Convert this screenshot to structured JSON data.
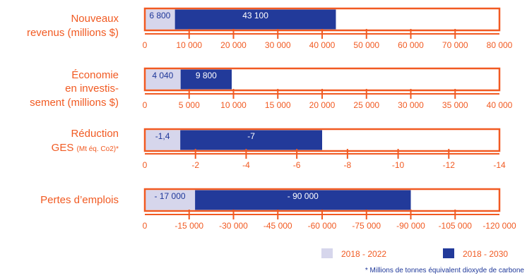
{
  "colors": {
    "accent": "#f15a22",
    "period_short": "#d6d6ec",
    "period_long": "#223a9a",
    "text_dark": "#1e3799"
  },
  "chart_data": [
    {
      "type": "bar",
      "label_lines": [
        "Nouveaux",
        "revenus (millions $)"
      ],
      "label_suffix": "",
      "xlim": [
        0,
        80000
      ],
      "ticks": [
        0,
        10000,
        20000,
        30000,
        40000,
        50000,
        60000,
        70000,
        80000
      ],
      "tick_labels": [
        "0",
        "10 000",
        "20 000",
        "30 000",
        "40 000",
        "50 000",
        "60 000",
        "70 000",
        "80 000"
      ],
      "series": [
        {
          "name": "2018 - 2022",
          "value": 6800,
          "label": "6 800"
        },
        {
          "name": "2018 - 2030",
          "value": 43100,
          "label": "43 100"
        }
      ]
    },
    {
      "type": "bar",
      "label_lines": [
        "Économie",
        "en investis-",
        "sement (millions $)"
      ],
      "label_suffix": "",
      "xlim": [
        0,
        40000
      ],
      "ticks": [
        0,
        5000,
        10000,
        15000,
        20000,
        25000,
        30000,
        35000,
        40000
      ],
      "tick_labels": [
        "0",
        "5 000",
        "10 000",
        "15 000",
        "20 000",
        "25 000",
        "30 000",
        "35 000",
        "40 000"
      ],
      "series": [
        {
          "name": "2018 - 2022",
          "value": 4040,
          "label": "4 040"
        },
        {
          "name": "2018 - 2030",
          "value": 9800,
          "label": "9 800"
        }
      ]
    },
    {
      "type": "bar",
      "label_lines": [
        "Réduction",
        "GES"
      ],
      "label_suffix": "(Mt éq. Co2)*",
      "xlim": [
        0,
        -14
      ],
      "ticks": [
        0,
        -2,
        -4,
        -6,
        -8,
        -10,
        -12,
        -14
      ],
      "tick_labels": [
        "0",
        "-2",
        "-4",
        "-6",
        "-8",
        "-10",
        "-12",
        "-14"
      ],
      "series": [
        {
          "name": "2018 - 2022",
          "value": -1.4,
          "label": "-1,4"
        },
        {
          "name": "2018 - 2030",
          "value": -7,
          "label": "-7"
        }
      ]
    },
    {
      "type": "bar",
      "label_lines": [
        "Pertes d’emplois"
      ],
      "label_suffix": "",
      "xlim": [
        0,
        -120000
      ],
      "ticks": [
        0,
        -15000,
        -30000,
        -45000,
        -60000,
        -75000,
        -90000,
        -105000,
        -120000
      ],
      "tick_labels": [
        "0",
        "-15 000",
        "-30 000",
        "-45 000",
        "-60 000",
        "-75 000",
        "-90 000",
        "-105 000",
        "-120 000"
      ],
      "series": [
        {
          "name": "2018 - 2022",
          "value": -17000,
          "label": "- 17 000"
        },
        {
          "name": "2018 - 2030",
          "value": -90000,
          "label": "- 90 000"
        }
      ]
    }
  ],
  "legend": {
    "items": [
      {
        "label": "2018 - 2022"
      },
      {
        "label": "2018 - 2030"
      }
    ],
    "footnote": "* Millions de tonnes équivalent dioxyde de carbone"
  }
}
